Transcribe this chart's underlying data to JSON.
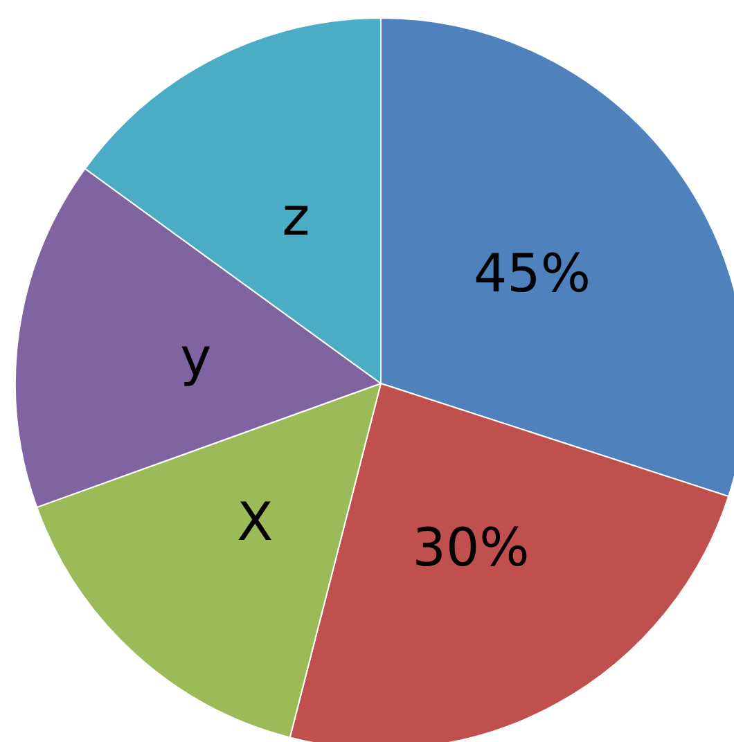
{
  "chart_data": {
    "type": "pie",
    "categories": [
      "45%",
      "30%",
      "X",
      "y",
      "z"
    ],
    "values": [
      30,
      24,
      15.5,
      15.5,
      15
    ],
    "colors": [
      "#4f81bd",
      "#c0504d",
      "#9bbb59",
      "#8064a2",
      "#4bacc6"
    ]
  }
}
